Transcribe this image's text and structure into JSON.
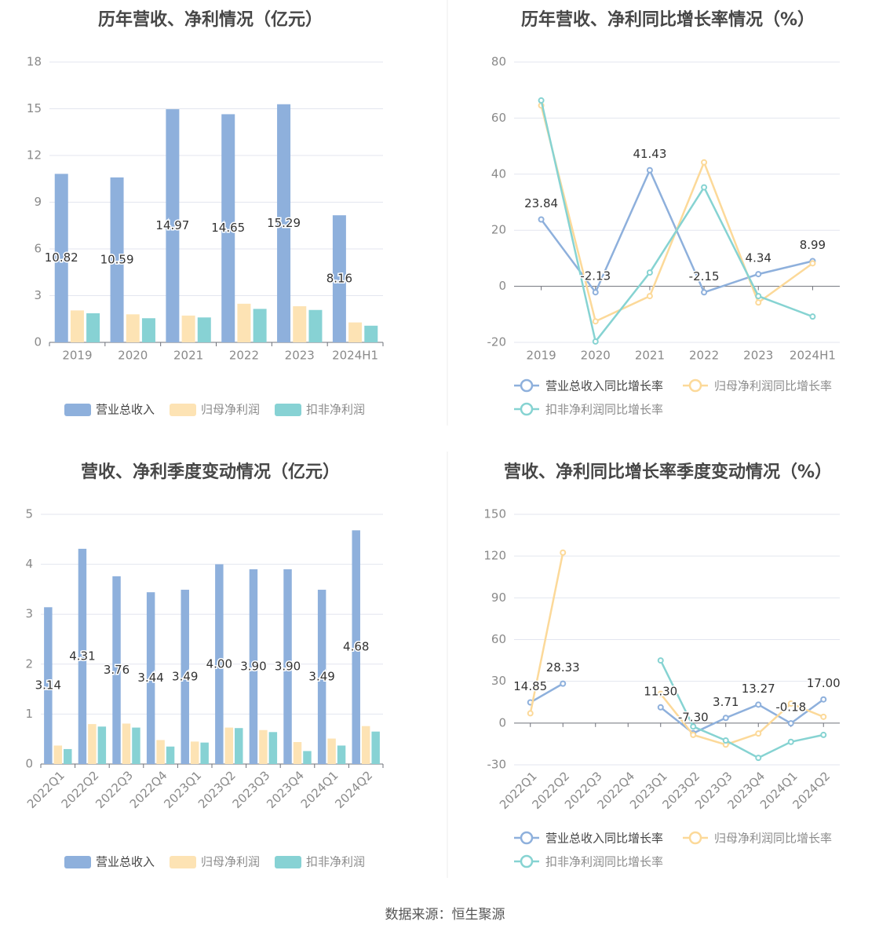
{
  "colors": {
    "revenue": "#8eb0dc",
    "net_profit": "#fde3b4",
    "deducted_profit": "#87d2d4",
    "revenue_line": "#8eb0dc",
    "net_profit_line": "#fcd999",
    "deducted_profit_line": "#86d3d2",
    "grid": "#e3e6ef",
    "axis": "#6e7079",
    "tick_text": "#8a8a8a",
    "title_text": "#474747"
  },
  "footer": {
    "source": "数据来源：恒生聚源"
  },
  "chart_data": [
    {
      "type": "bar",
      "title": "历年营收、净利情况（亿元）",
      "categories": [
        "2019",
        "2020",
        "2021",
        "2022",
        "2023",
        "2024H1"
      ],
      "ylim": [
        0,
        18
      ],
      "yticks": [
        0,
        3,
        6,
        9,
        12,
        15,
        18
      ],
      "grid": true,
      "legend": "bottom",
      "series": [
        {
          "name": "营业总收入",
          "values": [
            10.82,
            10.59,
            14.97,
            14.65,
            15.29,
            8.16
          ],
          "labels": [
            "10.82",
            "10.59",
            "14.97",
            "14.65",
            "15.29",
            "8.16"
          ]
        },
        {
          "name": "归母净利润",
          "values": [
            2.05,
            1.8,
            1.72,
            2.48,
            2.32,
            1.28
          ]
        },
        {
          "name": "扣非净利润",
          "values": [
            1.87,
            1.55,
            1.6,
            2.15,
            2.08,
            1.07
          ]
        }
      ]
    },
    {
      "type": "line",
      "title": "历年营收、净利同比增长率情况（%）",
      "categories": [
        "2019",
        "2020",
        "2021",
        "2022",
        "2023",
        "2024H1"
      ],
      "ylim": [
        -20,
        80
      ],
      "yticks": [
        -20,
        0,
        20,
        40,
        60,
        80
      ],
      "grid": true,
      "legend": "bottom",
      "series": [
        {
          "name": "营业总收入同比增长率",
          "values": [
            23.84,
            -2.13,
            41.43,
            -2.15,
            4.34,
            8.99
          ],
          "labels": [
            "23.84",
            "-2.13",
            "41.43",
            "-2.15",
            "4.34",
            "8.99"
          ]
        },
        {
          "name": "归母净利润同比增长率",
          "values": [
            64.5,
            -12.5,
            -3.5,
            44.2,
            -5.8,
            8.2
          ]
        },
        {
          "name": "扣非净利润同比增长率",
          "values": [
            66.3,
            -19.7,
            4.9,
            35.3,
            -3.5,
            -10.8
          ]
        }
      ]
    },
    {
      "type": "bar",
      "title": "营收、净利季度变动情况（亿元）",
      "categories": [
        "2022Q1",
        "2022Q2",
        "2022Q3",
        "2022Q4",
        "2023Q1",
        "2023Q2",
        "2023Q3",
        "2023Q4",
        "2024Q1",
        "2024Q2"
      ],
      "ylim": [
        0,
        5
      ],
      "yticks": [
        0,
        1,
        2,
        3,
        4,
        5
      ],
      "grid": true,
      "legend": "bottom",
      "series": [
        {
          "name": "营业总收入",
          "values": [
            3.14,
            4.31,
            3.76,
            3.44,
            3.49,
            4.0,
            3.9,
            3.9,
            3.49,
            4.68
          ],
          "labels": [
            "3.14",
            "4.31",
            "3.76",
            "3.44",
            "3.49",
            "4.00",
            "3.90",
            "3.90",
            "3.49",
            "4.68"
          ]
        },
        {
          "name": "归母净利润",
          "values": [
            0.37,
            0.8,
            0.81,
            0.48,
            0.45,
            0.73,
            0.68,
            0.44,
            0.51,
            0.76
          ]
        },
        {
          "name": "扣非净利润",
          "values": [
            0.3,
            0.75,
            0.73,
            0.35,
            0.43,
            0.72,
            0.64,
            0.26,
            0.37,
            0.65
          ]
        }
      ]
    },
    {
      "type": "line",
      "title": "营收、净利同比增长率季度变动情况（%）",
      "categories": [
        "2022Q1",
        "2022Q2",
        "2022Q3",
        "2022Q4",
        "2023Q1",
        "2023Q2",
        "2023Q3",
        "2023Q4",
        "2024Q1",
        "2024Q2"
      ],
      "ylim": [
        -30,
        150
      ],
      "yticks": [
        -30,
        0,
        30,
        60,
        90,
        120,
        150
      ],
      "grid": true,
      "legend": "bottom",
      "series": [
        {
          "name": "营业总收入同比增长率",
          "values": [
            14.85,
            28.33,
            null,
            null,
            11.3,
            -7.3,
            3.71,
            13.27,
            -0.18,
            17.0
          ],
          "labels": [
            "14.85",
            "28.33",
            "",
            "",
            "11.30",
            "-7.30",
            "3.71",
            "13.27",
            "-0.18",
            "17.00"
          ]
        },
        {
          "name": "归母净利润同比增长率",
          "values": [
            7.0,
            122.5,
            null,
            null,
            21.0,
            -8.5,
            -15.5,
            -7.5,
            14.0,
            4.5
          ]
        },
        {
          "name": "扣非净利润同比增长率",
          "values": [
            null,
            null,
            null,
            null,
            45.0,
            -2.5,
            -12.5,
            -25.0,
            -13.5,
            -8.5
          ]
        }
      ]
    }
  ]
}
